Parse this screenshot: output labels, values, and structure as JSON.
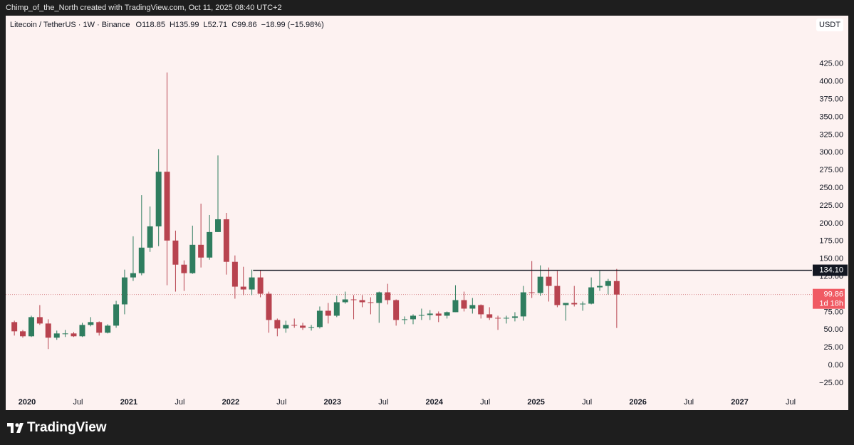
{
  "header": {
    "text": "Chimp_of_the_North created with TradingView.com, Oct 11, 2025 08:40 UTC+2"
  },
  "chart_data": {
    "type": "candlestick",
    "symbol": "Litecoin / TetherUS · 1W · Binance",
    "quote": [
      "O118.85",
      "H135.99",
      "L52.71",
      "C99.86",
      "−18.99 (−15.98%)"
    ],
    "currency": "USDT",
    "up_color": "#2f7d5f",
    "down_color": "#b8434f",
    "x": [
      2019.875,
      2019.958,
      2020.042,
      2020.125,
      2020.208,
      2020.292,
      2020.375,
      2020.458,
      2020.542,
      2020.625,
      2020.708,
      2020.792,
      2020.875,
      2020.958,
      2021.042,
      2021.125,
      2021.208,
      2021.292,
      2021.375,
      2021.458,
      2021.542,
      2021.625,
      2021.708,
      2021.792,
      2021.875,
      2021.958,
      2022.042,
      2022.125,
      2022.208,
      2022.292,
      2022.375,
      2022.458,
      2022.542,
      2022.625,
      2022.708,
      2022.792,
      2022.875,
      2022.958,
      2023.042,
      2023.125,
      2023.208,
      2023.292,
      2023.375,
      2023.458,
      2023.542,
      2023.625,
      2023.708,
      2023.792,
      2023.875,
      2023.958,
      2024.042,
      2024.125,
      2024.208,
      2024.292,
      2024.375,
      2024.458,
      2024.542,
      2024.625,
      2024.708,
      2024.792,
      2024.875,
      2024.958,
      2025.042,
      2025.125,
      2025.208,
      2025.292,
      2025.375,
      2025.458,
      2025.542,
      2025.625,
      2025.708,
      2025.792
    ],
    "open": [
      61,
      48,
      41,
      68,
      59,
      39,
      45,
      45,
      41,
      57,
      61,
      46,
      56,
      86,
      124,
      130,
      166,
      196,
      273,
      176,
      142,
      130,
      170,
      152,
      188,
      206,
      146,
      111,
      107,
      124,
      101,
      64,
      52,
      57,
      56,
      53,
      54,
      77,
      70,
      89,
      93,
      92,
      89,
      88,
      103,
      92,
      64,
      65,
      70,
      71,
      73,
      70,
      75,
      92,
      80,
      85,
      72,
      67,
      66,
      67,
      69,
      103,
      102,
      125,
      112,
      85,
      88,
      86,
      87,
      110,
      112,
      118.85
    ],
    "high": [
      63,
      50,
      70,
      85,
      65,
      49,
      50,
      47,
      60,
      68,
      62,
      58,
      91,
      135,
      182,
      240,
      224,
      305,
      413,
      190,
      148,
      197,
      228,
      212,
      296,
      215,
      155,
      139,
      135,
      134,
      104,
      66,
      63,
      66,
      60,
      57,
      83,
      88,
      98,
      104,
      99,
      99,
      96,
      104,
      115,
      93,
      69,
      72,
      80,
      78,
      76,
      76,
      113,
      104,
      95,
      86,
      82,
      70,
      70,
      75,
      112,
      147,
      141,
      138,
      133,
      88,
      112,
      90,
      124,
      133,
      122,
      135.99
    ],
    "low": [
      42,
      39,
      40,
      57,
      23,
      36,
      40,
      40,
      40,
      55,
      42,
      45,
      53,
      72,
      119,
      127,
      160,
      168,
      113,
      104,
      105,
      129,
      138,
      149,
      188,
      128,
      94,
      99,
      99,
      96,
      46,
      41,
      46,
      53,
      50,
      49,
      52,
      59,
      68,
      87,
      65,
      82,
      72,
      60,
      86,
      56,
      58,
      58,
      64,
      64,
      61,
      66,
      75,
      76,
      73,
      66,
      64,
      50,
      59,
      62,
      63,
      95,
      98,
      90,
      82,
      63,
      83,
      77,
      86,
      105,
      100,
      52.71
    ],
    "close": [
      48,
      41,
      68,
      59,
      39,
      45,
      45,
      41,
      57,
      61,
      46,
      56,
      86,
      124,
      130,
      166,
      196,
      273,
      176,
      142,
      130,
      170,
      152,
      188,
      206,
      146,
      111,
      107,
      124,
      101,
      64,
      52,
      57,
      56,
      53,
      54,
      77,
      70,
      89,
      93,
      92,
      89,
      88,
      103,
      92,
      64,
      65,
      70,
      71,
      73,
      70,
      75,
      92,
      80,
      85,
      72,
      67,
      66,
      67,
      69,
      103,
      102,
      125,
      112,
      85,
      88,
      86,
      87,
      110,
      112,
      118.85,
      99.86
    ],
    "xlim": [
      2019.79,
      2027.71
    ],
    "xticks": [
      2020,
      {
        "value": 2020.5,
        "label": "Jul"
      },
      2021,
      {
        "value": 2021.5,
        "label": "Jul"
      },
      2022,
      {
        "value": 2022.5,
        "label": "Jul"
      },
      2023,
      {
        "value": 2023.5,
        "label": "Jul"
      },
      2024,
      {
        "value": 2024.5,
        "label": "Jul"
      },
      2025,
      {
        "value": 2025.5,
        "label": "Jul"
      },
      2026,
      {
        "value": 2026.5,
        "label": "Jul"
      },
      2027,
      {
        "value": 2027.5,
        "label": "Jul"
      }
    ],
    "ylim": [
      -37,
      470
    ],
    "yticks": [
      {
        "value": 425,
        "label": "425.00"
      },
      {
        "value": 400,
        "label": "400.00"
      },
      {
        "value": 375,
        "label": "375.00"
      },
      {
        "value": 350,
        "label": "350.00"
      },
      {
        "value": 325,
        "label": "325.00"
      },
      {
        "value": 300,
        "label": "300.00"
      },
      {
        "value": 275,
        "label": "275.00"
      },
      {
        "value": 250,
        "label": "250.00"
      },
      {
        "value": 225,
        "label": "225.00"
      },
      {
        "value": 200,
        "label": "200.00"
      },
      {
        "value": 175,
        "label": "175.00"
      },
      {
        "value": 150,
        "label": "150.00"
      },
      {
        "value": 125,
        "label": "125.00"
      },
      {
        "value": 75,
        "label": "75.00"
      },
      {
        "value": 50,
        "label": "50.00"
      },
      {
        "value": 25,
        "label": "25.00"
      },
      {
        "value": 0,
        "label": "0.00"
      },
      {
        "value": -25,
        "label": "−25.00"
      }
    ],
    "level_line": {
      "value": 134.1,
      "label": "134.10",
      "start": 2022.22
    },
    "last_price": {
      "value": 99.86,
      "label": "99.86",
      "countdown": "1d 18h"
    }
  },
  "footer": {
    "brand": "TradingView"
  }
}
